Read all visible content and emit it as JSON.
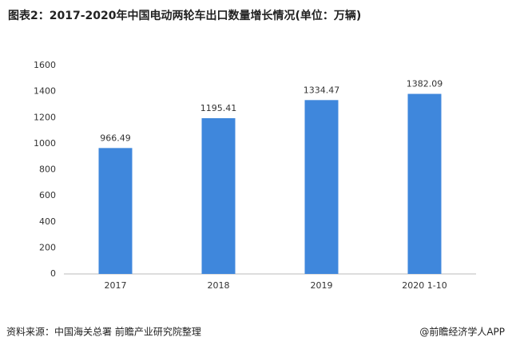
{
  "chart_data": {
    "type": "bar",
    "title": "图表2：2017-2020年中国电动两轮车出口数量增长情况(单位：万辆)",
    "categories": [
      "2017",
      "2018",
      "2019",
      "2020 1-10"
    ],
    "values": [
      966.49,
      1195.41,
      1334.47,
      1382.09
    ],
    "color": "#3f87dc",
    "ylim": [
      0,
      1600
    ],
    "yticks": [
      0,
      200,
      400,
      600,
      800,
      1000,
      1200,
      1400,
      1600
    ],
    "grid": false,
    "source": "资料来源：中国海关总署 前瞻产业研究院整理",
    "credit": "@前瞻经济学人APP"
  }
}
